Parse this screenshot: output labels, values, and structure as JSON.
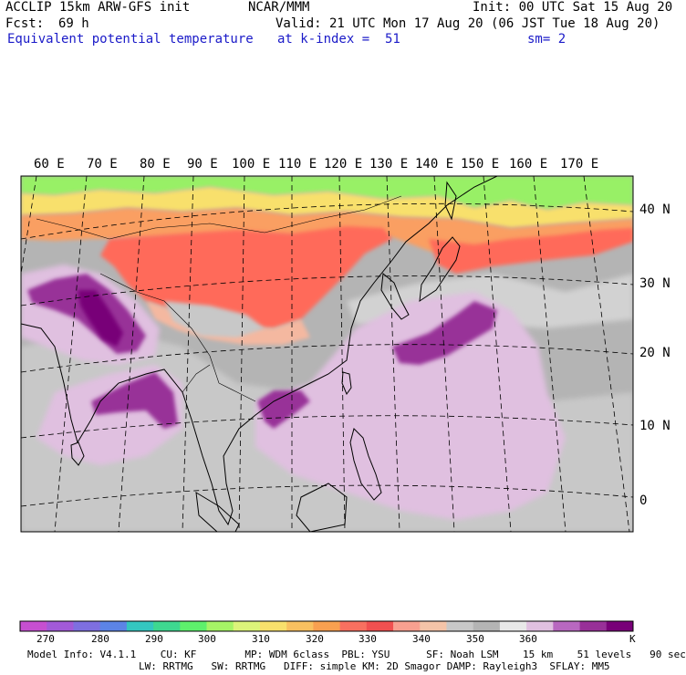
{
  "header": {
    "model_line": "ACCLIP 15km ARW-GFS init",
    "forecast_label": "Fcst:",
    "forecast_value": "69 h",
    "center": "NCAR/MMM",
    "init_line": "Init: 00 UTC Sat 15 Aug 20",
    "valid_line": "Valid: 21 UTC Mon 17 Aug 20 (06 JST Tue 18 Aug 20)",
    "field_name": "Equivalent potential temperature",
    "level_line": "at k-index =  51",
    "smoothing": "sm= 2"
  },
  "map": {
    "lon_labels": [
      "60 E",
      "70 E",
      "80 E",
      "90 E",
      "100 E",
      "110 E",
      "120 E",
      "130 E",
      "140 E",
      "150 E",
      "160 E",
      "170 E"
    ],
    "lat_labels": [
      "40 N",
      "30 N",
      "20 N",
      "10 N",
      "0"
    ],
    "colors": {
      "ocean": "#b4b4b4",
      "land_gray": "#c8c8c8",
      "warm_red": "#ff6a5a",
      "warm_orange": "#fa9f62",
      "cool_purple": "#a444b4",
      "dark_purple": "#880088",
      "light_purple": "#e0c0e0",
      "green": "#98f066"
    }
  },
  "colorbar": {
    "labels": [
      "270",
      "280",
      "290",
      "300",
      "310",
      "320",
      "330",
      "340",
      "350",
      "360"
    ],
    "unit": "K",
    "colors": [
      "#c64fd0",
      "#a25ad8",
      "#7e6fe0",
      "#5c84e6",
      "#34c6c0",
      "#3ed890",
      "#5ef06c",
      "#a6f466",
      "#dcf47a",
      "#f8e06c",
      "#f8c060",
      "#f8a050",
      "#f87060",
      "#f05050",
      "#f8a090",
      "#f4c4a8",
      "#c8c8c8",
      "#b4b4b4",
      "#e8e8e8",
      "#e0c0e0",
      "#b868c0",
      "#983098",
      "#780078"
    ]
  },
  "footer": {
    "line1": "Model Info: V4.1.1    CU: KF        MP: WDM 6class  PBL: YSU      SF: Noah LSM    15 km    51 levels   90 sec",
    "line2": "LW: RRTMG   SW: RRTMG   DIFF: simple KM: 2D Smagor DAMP: Rayleigh3  SFLAY: MM5"
  }
}
